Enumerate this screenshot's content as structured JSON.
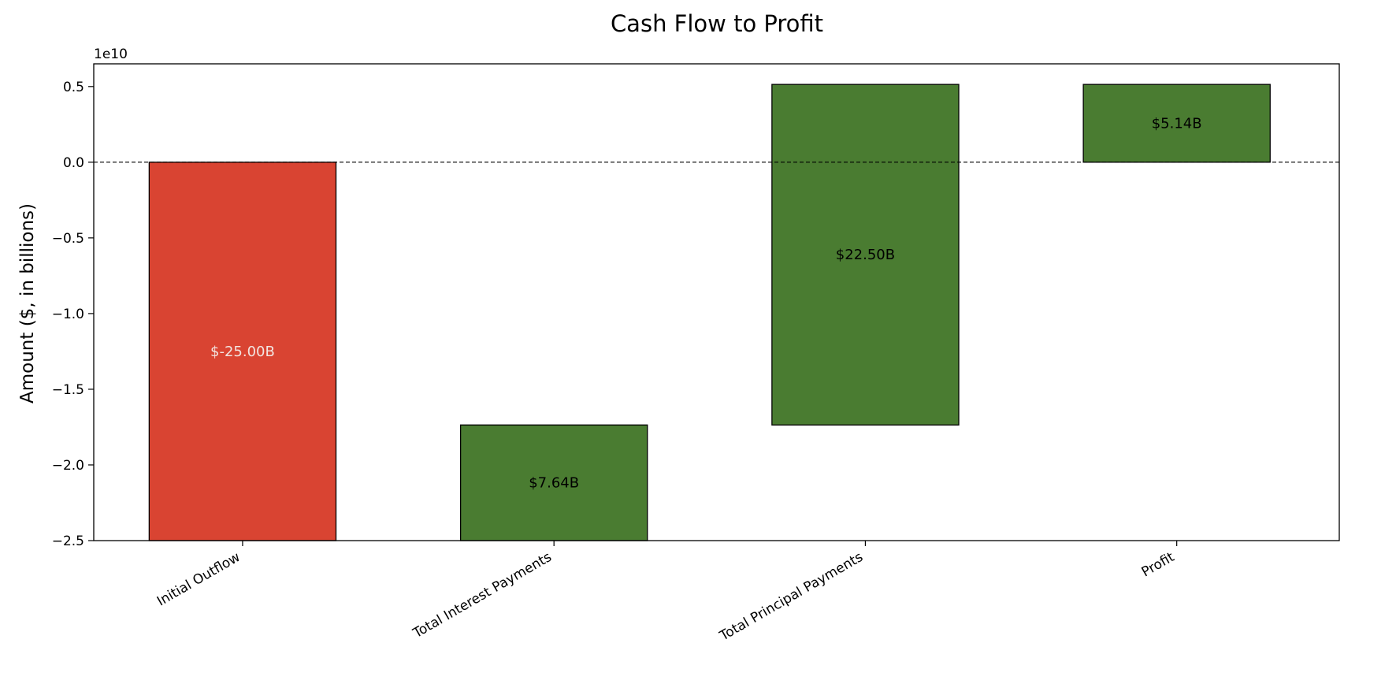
{
  "chart_data": {
    "type": "bar",
    "subtype": "waterfall",
    "title": "Cash Flow to Profit",
    "xlabel": "",
    "ylabel": "Amount ($, in billions)",
    "y_offset_label": "1e10",
    "ylim": [
      -2.5,
      0.65
    ],
    "yticks": [
      0.5,
      0.0,
      -0.5,
      -1.0,
      -1.5,
      -2.0,
      -2.5
    ],
    "ytick_labels": [
      "0.5",
      "0.0",
      "−0.5",
      "−1.0",
      "−1.5",
      "−2.0",
      "−2.5"
    ],
    "zero_line": "dashed",
    "grid": false,
    "categories": [
      "Initial Outflow",
      "Total Interest Payments",
      "Total Principal Payments",
      "Profit"
    ],
    "bars": [
      {
        "bottom": -2.5,
        "top": 0.0,
        "value_label": "$-25.00B",
        "color": "#d94432",
        "label_color": "#f2e4e0"
      },
      {
        "bottom": -2.5,
        "top": -1.736,
        "value_label": "$7.64B",
        "color": "#4a7c31",
        "label_color": "#000000"
      },
      {
        "bottom": -1.736,
        "top": 0.514,
        "value_label": "$22.50B",
        "color": "#4a7c31",
        "label_color": "#000000"
      },
      {
        "bottom": 0.0,
        "top": 0.514,
        "value_label": "$5.14B",
        "color": "#4a7c31",
        "label_color": "#000000"
      }
    ]
  }
}
